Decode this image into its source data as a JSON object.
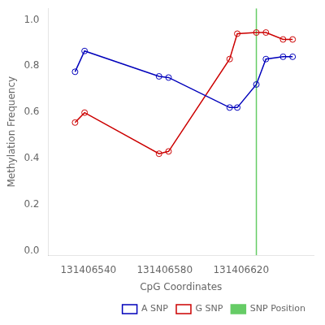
{
  "chart_data": {
    "type": "line",
    "xlabel": "CpG Coordinates",
    "ylabel": "Methylation Frequency",
    "x": [
      131406533,
      131406538,
      131406577,
      131406582,
      131406614,
      131406618,
      131406628,
      131406633,
      131406642,
      131406647
    ],
    "series": [
      {
        "name": "A SNP",
        "color": "#0000bb",
        "marker": "circle",
        "values": [
          0.775,
          0.865,
          0.755,
          0.75,
          0.62,
          0.62,
          0.72,
          0.83,
          0.84,
          0.84
        ]
      },
      {
        "name": "G SNP",
        "color": "#cc0000",
        "marker": "circle",
        "values": [
          0.555,
          0.598,
          0.42,
          0.43,
          0.83,
          0.94,
          0.945,
          0.945,
          0.915,
          0.915
        ]
      },
      {
        "name": "SNP Position",
        "color": "#66cc66",
        "type": "vline",
        "x": 131406628
      }
    ],
    "xlim": [
      131406519,
      131406658
    ],
    "ylim": [
      -0.02,
      1.05
    ],
    "xticks": [
      131406540,
      131406580,
      131406620
    ],
    "yticks": [
      {
        "value": 0,
        "label": "0.0"
      },
      0.2,
      0.4,
      0.6,
      0.8,
      {
        "value": 1,
        "label": "1.0"
      }
    ],
    "grid": false,
    "legend": "lower right"
  }
}
